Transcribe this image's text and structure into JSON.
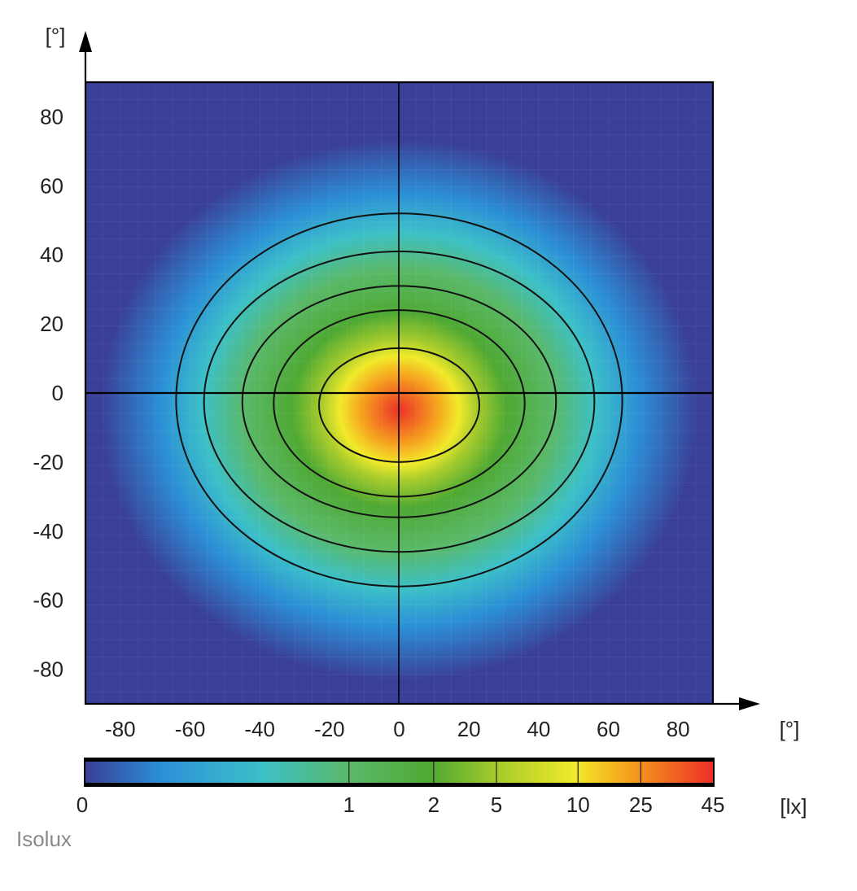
{
  "chart_data": {
    "type": "heatmap",
    "title": "",
    "xlabel": "[°]",
    "ylabel": "[°]",
    "xlim": [
      -90,
      90
    ],
    "ylim": [
      -90,
      90
    ],
    "x_ticks": [
      -80,
      -60,
      -40,
      -20,
      0,
      20,
      40,
      60,
      80
    ],
    "y_ticks": [
      80,
      60,
      40,
      20,
      0,
      -20,
      -40,
      -60,
      -80
    ],
    "grid": true,
    "peak": {
      "x": 0,
      "y": -5,
      "value": 45
    },
    "colorbar": {
      "unit": "[lx]",
      "tick_labels": [
        "0",
        "1",
        "2",
        "5",
        "10",
        "25",
        "45"
      ],
      "tick_values": [
        0,
        1,
        2,
        5,
        10,
        25,
        45
      ],
      "colors": [
        "#3a3f97",
        "#2c8fd6",
        "#3cc0c8",
        "#5ab96a",
        "#4fa934",
        "#a8cc2c",
        "#f1ea2a",
        "#f6a51e",
        "#ec2f28"
      ]
    },
    "isolux_contours": [
      {
        "level": 25,
        "x_min": -23,
        "x_max": 23,
        "y_min": -20,
        "y_max": 13
      },
      {
        "level": 10,
        "x_min": -36,
        "x_max": 36,
        "y_min": -30,
        "y_max": 24
      },
      {
        "level": 5,
        "x_min": -45,
        "x_max": 45,
        "y_min": -36,
        "y_max": 31
      },
      {
        "level": 2,
        "x_min": -56,
        "x_max": 56,
        "y_min": -46,
        "y_max": 41
      },
      {
        "level": 1,
        "x_min": -64,
        "x_max": 64,
        "y_min": -56,
        "y_max": 52
      }
    ],
    "caption": "Isolux"
  }
}
